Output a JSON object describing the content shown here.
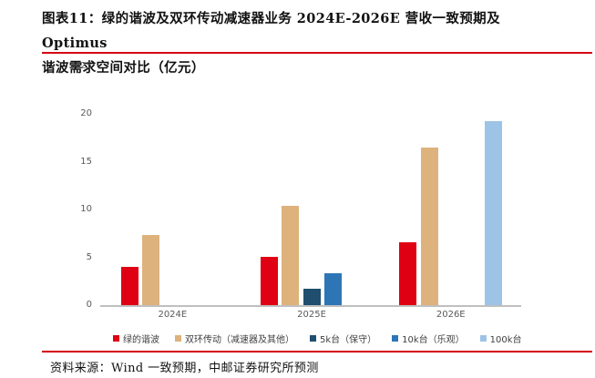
{
  "title": {
    "line1": "图表11：绿的谐波及双环传动减速器业务 2024E-2026E 营收一致预期及 Optimus",
    "line2": "谐波需求空间对比（亿元）"
  },
  "source": "资料来源：Wind 一致预期，中邮证券研究所预测",
  "colors": {
    "accent_rule": "#d50011",
    "axis_line": "#bfbfbf",
    "tick_text": "#595959",
    "legend_text": "#404040"
  },
  "chart_data": {
    "type": "bar",
    "categories": [
      "2024E",
      "2025E",
      "2026E"
    ],
    "series": [
      {
        "name": "绿的谐波",
        "color": "#e00013",
        "values": [
          4.0,
          5.1,
          6.6
        ]
      },
      {
        "name": "双环传动（减速器及其他）",
        "color": "#ddb27c",
        "values": [
          7.3,
          10.4,
          16.5
        ]
      },
      {
        "name": "5k台（保守）",
        "color": "#1f4e6e",
        "values": [
          null,
          1.7,
          null
        ]
      },
      {
        "name": "10k台（乐观）",
        "color": "#2e75b6",
        "values": [
          null,
          3.3,
          null
        ]
      },
      {
        "name": "100k台",
        "color": "#9dc3e6",
        "values": [
          null,
          null,
          19.3
        ]
      }
    ],
    "ylim": [
      0,
      25
    ],
    "yticks": [
      0,
      5,
      10,
      15,
      20,
      25
    ],
    "grid": false,
    "legend_position": "bottom"
  }
}
